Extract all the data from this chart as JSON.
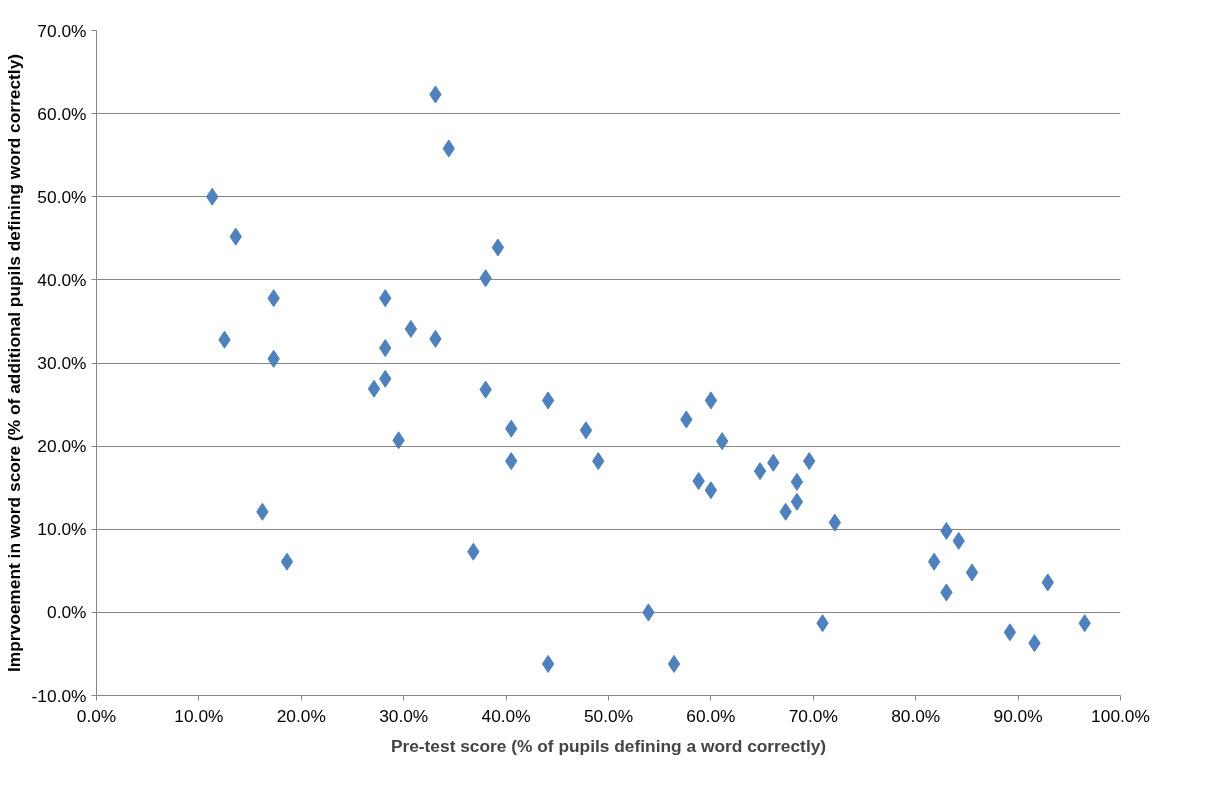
{
  "chart_data": {
    "type": "scatter",
    "xlabel": "Pre-test score (% of pupils defining a word correctly)",
    "ylabel": "Imprvoement in word score (% of additional pupils defining word correctly)",
    "x": [
      11.3,
      13.6,
      12.5,
      17.3,
      17.3,
      16.2,
      18.6,
      27.1,
      28.2,
      28.2,
      28.2,
      29.5,
      30.7,
      33.1,
      33.1,
      34.4,
      38.0,
      38.0,
      39.2,
      36.8,
      40.5,
      40.5,
      44.1,
      44.1,
      47.8,
      49.0,
      53.9,
      56.4,
      57.6,
      58.8,
      60.0,
      60.0,
      61.1,
      64.8,
      66.1,
      67.3,
      68.4,
      68.4,
      69.6,
      70.9,
      72.1,
      81.8,
      83.0,
      83.0,
      84.2,
      85.5,
      89.2,
      91.6,
      92.9,
      96.5
    ],
    "values": [
      50.0,
      45.2,
      32.8,
      37.8,
      30.5,
      12.1,
      6.1,
      26.9,
      28.1,
      31.8,
      37.8,
      20.7,
      34.1,
      32.9,
      62.3,
      55.8,
      26.8,
      40.2,
      43.9,
      7.3,
      22.1,
      18.2,
      25.5,
      -6.2,
      21.9,
      18.2,
      0.0,
      -6.2,
      23.2,
      15.8,
      25.5,
      14.7,
      20.6,
      17.0,
      18.0,
      12.1,
      13.3,
      15.7,
      18.2,
      -1.3,
      10.8,
      6.1,
      9.8,
      2.4,
      8.6,
      4.8,
      -2.4,
      -3.7,
      3.6,
      -1.3
    ],
    "color": "#4f81bd",
    "marker": "diamond",
    "xlim": [
      0,
      100
    ],
    "xticks": [
      {
        "value": 0,
        "label": "0.0%"
      },
      {
        "value": 10,
        "label": "10.0%"
      },
      {
        "value": 20,
        "label": "20.0%"
      },
      {
        "value": 30,
        "label": "30.0%"
      },
      {
        "value": 40,
        "label": "40.0%"
      },
      {
        "value": 50,
        "label": "50.0%"
      },
      {
        "value": 60,
        "label": "60.0%"
      },
      {
        "value": 70,
        "label": "70.0%"
      },
      {
        "value": 80,
        "label": "80.0%"
      },
      {
        "value": 90,
        "label": "90.0%"
      },
      {
        "value": 100,
        "label": "100.0%"
      }
    ],
    "ylim": [
      -10,
      70
    ],
    "yticks": [
      {
        "value": -10,
        "label": "-10.0%"
      },
      {
        "value": 0,
        "label": "0.0%"
      },
      {
        "value": 10,
        "label": "10.0%"
      },
      {
        "value": 20,
        "label": "20.0%"
      },
      {
        "value": 30,
        "label": "30.0%"
      },
      {
        "value": 40,
        "label": "40.0%"
      },
      {
        "value": 50,
        "label": "50.0%"
      },
      {
        "value": 60,
        "label": "60.0%"
      },
      {
        "value": 70,
        "label": "70.0%"
      }
    ],
    "grid": "y"
  }
}
